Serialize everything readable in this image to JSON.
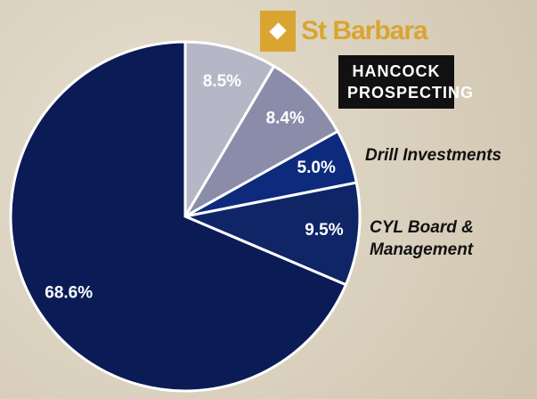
{
  "chart_data": {
    "type": "pie",
    "categories": [
      "St Barbara",
      "HANCOCK PROSPECTING",
      "Drill Investments",
      "CYL Board & Management",
      null
    ],
    "values": [
      8.5,
      8.4,
      5.0,
      9.5,
      68.6
    ],
    "value_labels": [
      "8.5%",
      "8.4%",
      "5.0%",
      "9.5%",
      "68.6%"
    ],
    "colors": [
      "#b5b7c7",
      "#8a8ca9",
      "#0d2a7c",
      "#0f2566",
      "#0b1b56"
    ]
  }
}
